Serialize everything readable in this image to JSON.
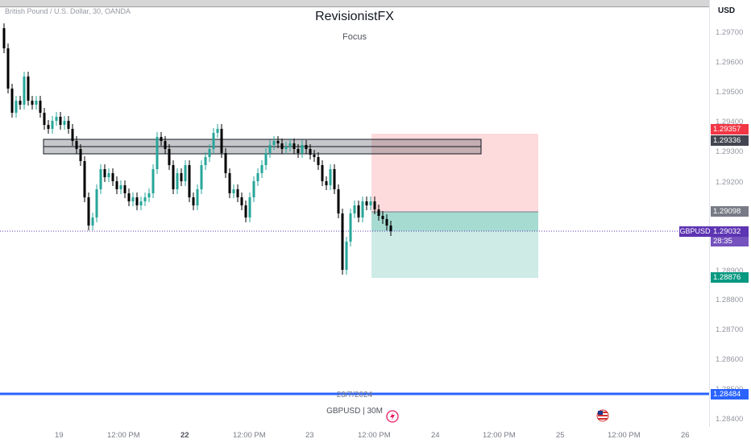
{
  "header": {
    "symbol_line": "British Pound / U.S. Dollar, 30, OANDA",
    "brand": "RevisionistFX",
    "subtitle": "Focus"
  },
  "price_axis": {
    "currency": "USD",
    "ticks": [
      "1.29700",
      "1.29600",
      "1.29500",
      "1.29400",
      "1.29300",
      "1.29200",
      "1.28900",
      "1.28800",
      "1.28700",
      "1.28600",
      "1.28500",
      "1.28400"
    ]
  },
  "badges": {
    "stop_loss": "1.29357",
    "zone_top": "1.29336",
    "entry": "1.29098",
    "current": "1.29032",
    "countdown": "28:35",
    "take_profit": "1.28876",
    "horizontal_line": "1.28484",
    "symbol": "GBPUSD"
  },
  "colors": {
    "stop_loss": "#f23645",
    "zone_badge": "#434651",
    "entry_badge": "#787b86",
    "current_badge": "#5d34b2",
    "take_profit": "#089981",
    "horizontal_line": "#2962ff",
    "candle_up": "#26a69a",
    "candle_down": "#000000"
  },
  "time_axis": {
    "labels": [
      "19",
      "12:00 PM",
      "22",
      "12:00 PM",
      "23",
      "12:00 PM",
      "24",
      "12:00 PM",
      "25",
      "12:00 PM",
      "26"
    ],
    "hover_date": "23/7/2024"
  },
  "footer": {
    "interval": "GBPUSD | 30M"
  },
  "icons": [
    "flash-icon",
    "us-flag-icon"
  ]
}
